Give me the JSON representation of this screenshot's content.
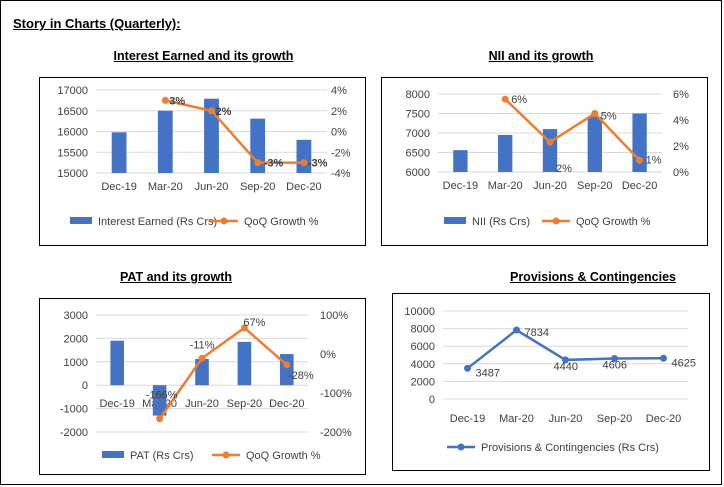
{
  "page": {
    "title": "Story in Charts (Quarterly):"
  },
  "colors": {
    "bar": "#4472C4",
    "growth": "#ED7D31",
    "provisions": "#4472C4",
    "grid": "#d9d9d9",
    "axis_text": "#404040"
  },
  "chart_data": [
    {
      "id": "interest",
      "type": "bar",
      "title": "Interest Earned and its growth",
      "categories": [
        "Dec-19",
        "Mar-20",
        "Jun-20",
        "Sep-20",
        "Dec-20"
      ],
      "series": [
        {
          "name": "Interest Earned  (Rs Crs)",
          "type": "bar",
          "axis": "left",
          "values": [
            15980,
            16500,
            16790,
            16310,
            15800
          ]
        },
        {
          "name": "QoQ Growth %",
          "type": "line",
          "axis": "right",
          "values": [
            null,
            3,
            2,
            -3,
            -3
          ],
          "labels": [
            "",
            "3%",
            "2%",
            "-3%",
            "-3%"
          ]
        }
      ],
      "yticks": [
        "17000",
        "16500",
        "16000",
        "15500",
        "15000"
      ],
      "ylim": [
        15000,
        17000
      ],
      "y2ticks": [
        "4%",
        "2%",
        "0%",
        "-2%",
        "-4%"
      ],
      "y2lim": [
        -4,
        4
      ],
      "grid": true,
      "legend": "bottom"
    },
    {
      "id": "nii",
      "type": "bar",
      "title": "NII and its growth",
      "categories": [
        "Dec-19",
        "Mar-20",
        "Jun-20",
        "Sep-20",
        "Dec-20"
      ],
      "series": [
        {
          "name": "NII (Rs Crs)",
          "type": "bar",
          "axis": "left",
          "values": [
            6560,
            6950,
            7100,
            7420,
            7500
          ]
        },
        {
          "name": "QoQ Growth %",
          "type": "line",
          "axis": "right",
          "values": [
            null,
            5.6,
            2.3,
            4.5,
            0.9
          ],
          "labels": [
            "",
            "6%",
            "2%",
            "5%",
            "1%"
          ]
        }
      ],
      "yticks": [
        "8000",
        "7500",
        "7000",
        "6500",
        "6000"
      ],
      "ylim": [
        6000,
        8000
      ],
      "y2ticks": [
        "6%",
        "4%",
        "2%",
        "0%"
      ],
      "y2lim": [
        0,
        6
      ],
      "grid": true,
      "legend": "bottom"
    },
    {
      "id": "pat",
      "type": "bar",
      "title": "PAT and its growth",
      "categories": [
        "Dec-19",
        "Mar-20",
        "Jun-20",
        "Sep-20",
        "Dec-20"
      ],
      "series": [
        {
          "name": "PAT (Rs Crs)",
          "type": "bar",
          "axis": "left",
          "values": [
            1900,
            -1300,
            1120,
            1850,
            1330
          ]
        },
        {
          "name": "QoQ Growth %",
          "type": "line",
          "axis": "right",
          "values": [
            null,
            -166,
            -11,
            67,
            -28
          ],
          "labels": [
            "",
            "-166%",
            "-11%",
            "67%",
            "-28%"
          ]
        }
      ],
      "yticks": [
        "3000",
        "2000",
        "1000",
        "0",
        "-1000",
        "-2000"
      ],
      "ylim": [
        -2000,
        3000
      ],
      "y2ticks": [
        "100%",
        "0%",
        "-100%",
        "-200%"
      ],
      "y2lim": [
        -200,
        100
      ],
      "grid": true,
      "legend": "bottom"
    },
    {
      "id": "provisions",
      "type": "line",
      "title": "Provisions & Contingencies",
      "categories": [
        "Dec-19",
        "Mar-20",
        "Jun-20",
        "Sep-20",
        "Dec-20"
      ],
      "series": [
        {
          "name": "Provisions & Contingencies  (Rs Crs)",
          "type": "line",
          "axis": "left",
          "values": [
            3487,
            7834,
            4440,
            4606,
            4625
          ],
          "labels": [
            "3487",
            "7834",
            "4440",
            "4606",
            "4625"
          ]
        }
      ],
      "yticks": [
        "10000",
        "8000",
        "6000",
        "4000",
        "2000",
        "0"
      ],
      "ylim": [
        0,
        10000
      ],
      "grid": true,
      "legend": "bottom"
    }
  ]
}
